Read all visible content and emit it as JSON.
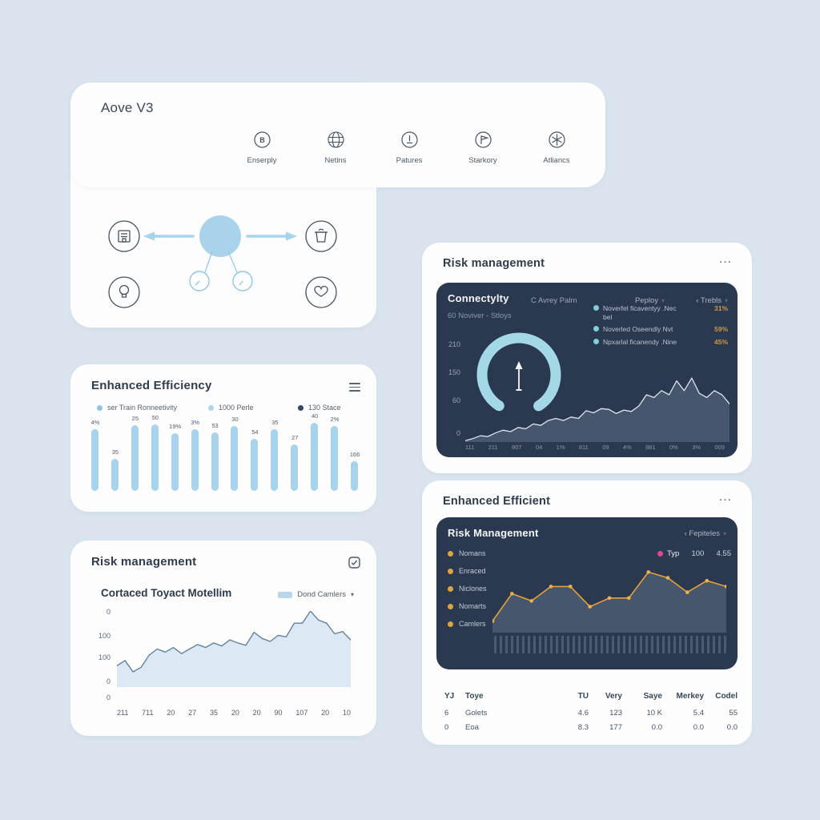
{
  "page": {
    "background": "#d9e4ee",
    "card_color": "#fdfdfe",
    "panel_color": "#2b3950"
  },
  "colors": {
    "accent_blue": "#a7d3ec",
    "teal_dot": "#7ed0da",
    "gauge": "#a3d9e6",
    "orange": "#e2a23c",
    "orange_value": "#cc9746",
    "pink": "#e0468a",
    "slate_fill": "#46566e",
    "dark_navy": "#2b3950"
  },
  "overview": {
    "title": "Aove V3",
    "features": [
      {
        "icon": "b-circle-icon",
        "label": "Enserply"
      },
      {
        "icon": "globe-icon",
        "label": "Netins"
      },
      {
        "icon": "clock-icon",
        "label": "Patures"
      },
      {
        "icon": "flag-icon",
        "label": "Starkory"
      },
      {
        "icon": "asterisk-icon",
        "label": "Atliancs"
      }
    ],
    "diagram_icons": [
      "building-icon",
      "trash-icon",
      "bulb-icon",
      "heart-icon",
      "hub-node",
      "sub-node-1",
      "sub-node-2",
      "arrow-left-icon",
      "arrow-right-icon"
    ]
  },
  "efficiency": {
    "title": "Enhanced Efficiency",
    "menu_icon": "hamburger-icon",
    "legend": [
      {
        "label": "ser Train Ronneetivity",
        "color": "#8fc3e3"
      },
      {
        "label": "1000 Perle",
        "color": "#abd6ee"
      },
      {
        "label": "130 Stace",
        "color": "#2e4a66"
      }
    ]
  },
  "risk_left": {
    "title": "Risk management",
    "checkbox_icon": "checkbox-icon",
    "subtitle": "Cortaced Toyact Motellim",
    "series_label": "Dond Camlers",
    "series_swatch": "#b9d6ec"
  },
  "risk_right": {
    "title": "Risk management",
    "menu_icon": "ellipsis-icon",
    "panel_title": "Connectylty",
    "panel_subtitle": "C Avrey Palm",
    "controls": [
      {
        "label": "Peploy"
      },
      {
        "label": "‹ Trebls"
      }
    ],
    "caption": "60 Noviver - Stloys",
    "legend": [
      {
        "label": "Noverfel ficaventyy .Nec",
        "label2": "bel",
        "value": "31%"
      },
      {
        "label": "Noverled Oseendly Nvt",
        "label2": "",
        "value": "59%"
      },
      {
        "label": "Npxarlal ficanendy .Nine",
        "label2": "",
        "value": "45%"
      }
    ],
    "gauge_icon": "arrow-up-gauge-icon"
  },
  "efficient_right": {
    "title": "Enhanced Efficient",
    "menu_icon": "ellipsis-icon",
    "panel_title": "Risk Management",
    "control": "‹ Fepiteles",
    "legend_left": [
      "Nomans",
      "Enraced",
      "Niclones",
      "Nomarts",
      "Camlers"
    ],
    "series": {
      "label": "Typ",
      "value1": "100",
      "value2": "4.55"
    },
    "table": {
      "headers": [
        "YJ",
        "Toye",
        "TU",
        "Very",
        "Saye",
        "Merkey",
        "Codel"
      ],
      "rows": [
        [
          "6",
          "Golets",
          "4.6",
          "123",
          "10 K",
          "5.4",
          "55"
        ],
        [
          "0",
          "Eoa",
          "8.3",
          "177",
          "0.0",
          "0.0",
          "0.0"
        ]
      ]
    }
  },
  "chart_data": [
    {
      "id": "efficiency_bars",
      "type": "bar",
      "title": "Enhanced Efficiency",
      "categories": [
        "4%",
        "35",
        "25",
        "50",
        "19%",
        "3%",
        "53",
        "30",
        "54",
        "35",
        "27",
        "40",
        "2%",
        "166"
      ],
      "values": [
        91,
        47,
        97,
        98,
        85,
        91,
        86,
        95,
        77,
        91,
        68,
        100,
        95,
        44
      ],
      "bar_color": "#a7d3ec",
      "value_labels_shown": true,
      "ylim": [
        0,
        100
      ]
    },
    {
      "id": "risk_left_area",
      "type": "area",
      "title": "Cortaced Toyact Motellim",
      "series_name": "Dond Camlers",
      "y_ticks": [
        "0",
        "100",
        "100",
        "0",
        "0"
      ],
      "x_ticks": [
        "211",
        "711",
        "20",
        "27",
        "35",
        "20",
        "20",
        "90",
        "107",
        "20",
        "10"
      ],
      "values": [
        28,
        35,
        20,
        26,
        42,
        50,
        46,
        52,
        44,
        50,
        56,
        52,
        58,
        54,
        62,
        58,
        55,
        72,
        64,
        60,
        68,
        66,
        84,
        84,
        100,
        88,
        84,
        70,
        73,
        62
      ],
      "line_color": "#64819f",
      "fill_color": "#dce8f3",
      "grid": false
    },
    {
      "id": "connectivity_area",
      "type": "area",
      "title": "Connectylty",
      "y_ticks": [
        "210",
        "150",
        "60",
        "0"
      ],
      "x_ticks": [
        "111",
        "211",
        "807",
        "04",
        "1%",
        "811",
        "09",
        "4%",
        "881",
        "0%",
        "3%",
        "009"
      ],
      "values": [
        2,
        5,
        9,
        8,
        13,
        17,
        15,
        21,
        19,
        26,
        24,
        31,
        34,
        31,
        36,
        34,
        45,
        42,
        48,
        47,
        41,
        46,
        44,
        52,
        68,
        64,
        74,
        68,
        88,
        74,
        92,
        70,
        64,
        74,
        68,
        55
      ],
      "y_scale": 0.62,
      "line_color": "#dde5ee",
      "fill_color": "#46566e",
      "gauge": {
        "shape": "open-ring",
        "color": "#a3d9e6",
        "symbol": "up-arrow"
      },
      "grid": false
    },
    {
      "id": "efficient_line",
      "type": "line",
      "title": "Risk Management",
      "series_name": "Typ",
      "values": [
        16,
        54,
        44,
        64,
        64,
        36,
        48,
        48,
        84,
        76,
        56,
        72,
        64
      ],
      "line_color": "#e6a23a",
      "point_color": "#f1b04a",
      "fill_color": "#46566c",
      "tick_color": "#4c5b72",
      "grid": false
    }
  ]
}
